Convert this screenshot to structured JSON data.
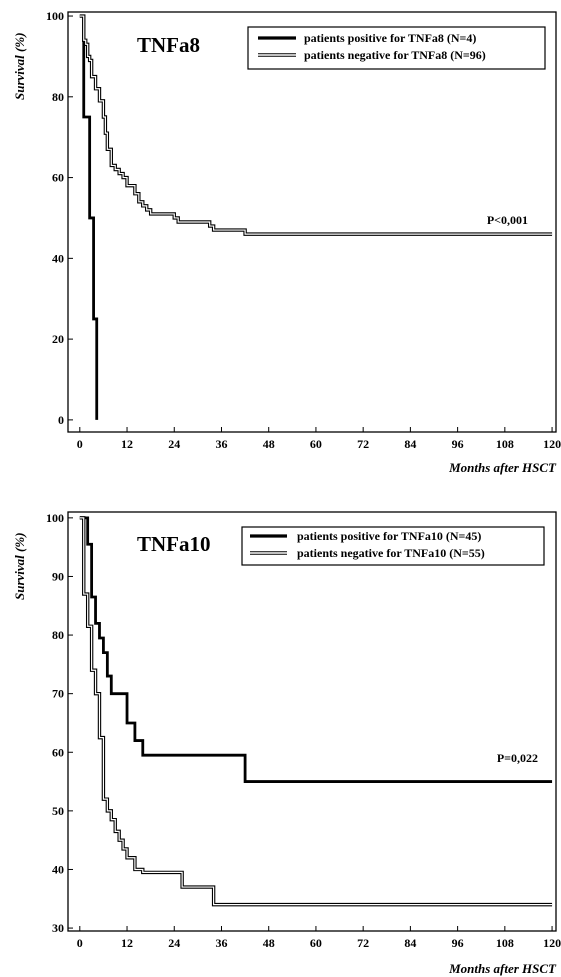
{
  "chart_data": [
    {
      "type": "line",
      "title": "TNFa8",
      "ylabel": "Survival (%)",
      "xlabel": "Months after HSCT",
      "xlim": [
        -3,
        121
      ],
      "ylim": [
        -3,
        101
      ],
      "xticks": [
        0,
        12,
        24,
        36,
        48,
        60,
        72,
        84,
        96,
        108,
        120
      ],
      "yticks": [
        0,
        20,
        40,
        60,
        80,
        100
      ],
      "annotation": "P<0,001",
      "legend_position": "top-right",
      "series": [
        {
          "name": "patients positive for TNFa8 (N=4)",
          "style": "bold",
          "x": [
            0,
            1,
            1.5,
            2.5,
            3.5,
            4.3
          ],
          "y": [
            100,
            75,
            75,
            50,
            25,
            0
          ]
        },
        {
          "name": "patients negative for TNFa8 (N=96)",
          "style": "double",
          "x": [
            0,
            0.5,
            1,
            1.5,
            2,
            2.5,
            3,
            4,
            5,
            6,
            6.5,
            7,
            8,
            9,
            10,
            11,
            12,
            14,
            15,
            16,
            17,
            18,
            24,
            25,
            33,
            34,
            42,
            120
          ],
          "y": [
            100,
            100,
            94,
            93,
            90,
            89,
            85,
            82,
            79,
            75,
            71,
            67,
            63,
            62,
            61,
            60,
            58,
            56,
            54,
            53,
            52,
            51,
            50,
            49,
            48,
            47,
            46,
            46
          ]
        }
      ]
    },
    {
      "type": "line",
      "title": "TNFa10",
      "ylabel": "Survival (%)",
      "xlabel": "Months after HSCT",
      "xlim": [
        -3,
        121
      ],
      "ylim": [
        29.5,
        101
      ],
      "xticks": [
        0,
        12,
        24,
        36,
        48,
        60,
        72,
        84,
        96,
        108,
        120
      ],
      "yticks": [
        30,
        40,
        50,
        60,
        70,
        80,
        90,
        100
      ],
      "annotation": "P=0,022",
      "legend_position": "top-right",
      "series": [
        {
          "name": "patients positive for TNFa10 (N=45)",
          "style": "bold",
          "x": [
            0,
            1.5,
            2,
            3,
            4,
            5,
            6,
            7,
            8,
            12,
            14,
            16,
            18,
            42,
            120
          ],
          "y": [
            100,
            100,
            95.5,
            86.5,
            82,
            79.5,
            77,
            73,
            70,
            65,
            62,
            59.5,
            59.5,
            55,
            55
          ],
          "step_x": [
            0,
            1.5,
            2,
            3,
            4,
            5,
            6,
            7,
            8,
            12,
            14,
            16,
            18,
            42,
            120
          ]
        },
        {
          "name": "patients negative for TNFa10 (N=55)",
          "style": "double",
          "x": [
            0,
            1,
            2,
            3,
            4,
            5,
            6,
            7,
            8,
            9,
            10,
            11,
            12,
            14,
            16,
            18,
            26,
            34,
            120
          ],
          "y": [
            100,
            87,
            81.5,
            74,
            70,
            62.5,
            52,
            50,
            48.5,
            46.5,
            45,
            43.5,
            42,
            40,
            39.5,
            39.5,
            37,
            34,
            34
          ]
        }
      ]
    }
  ]
}
